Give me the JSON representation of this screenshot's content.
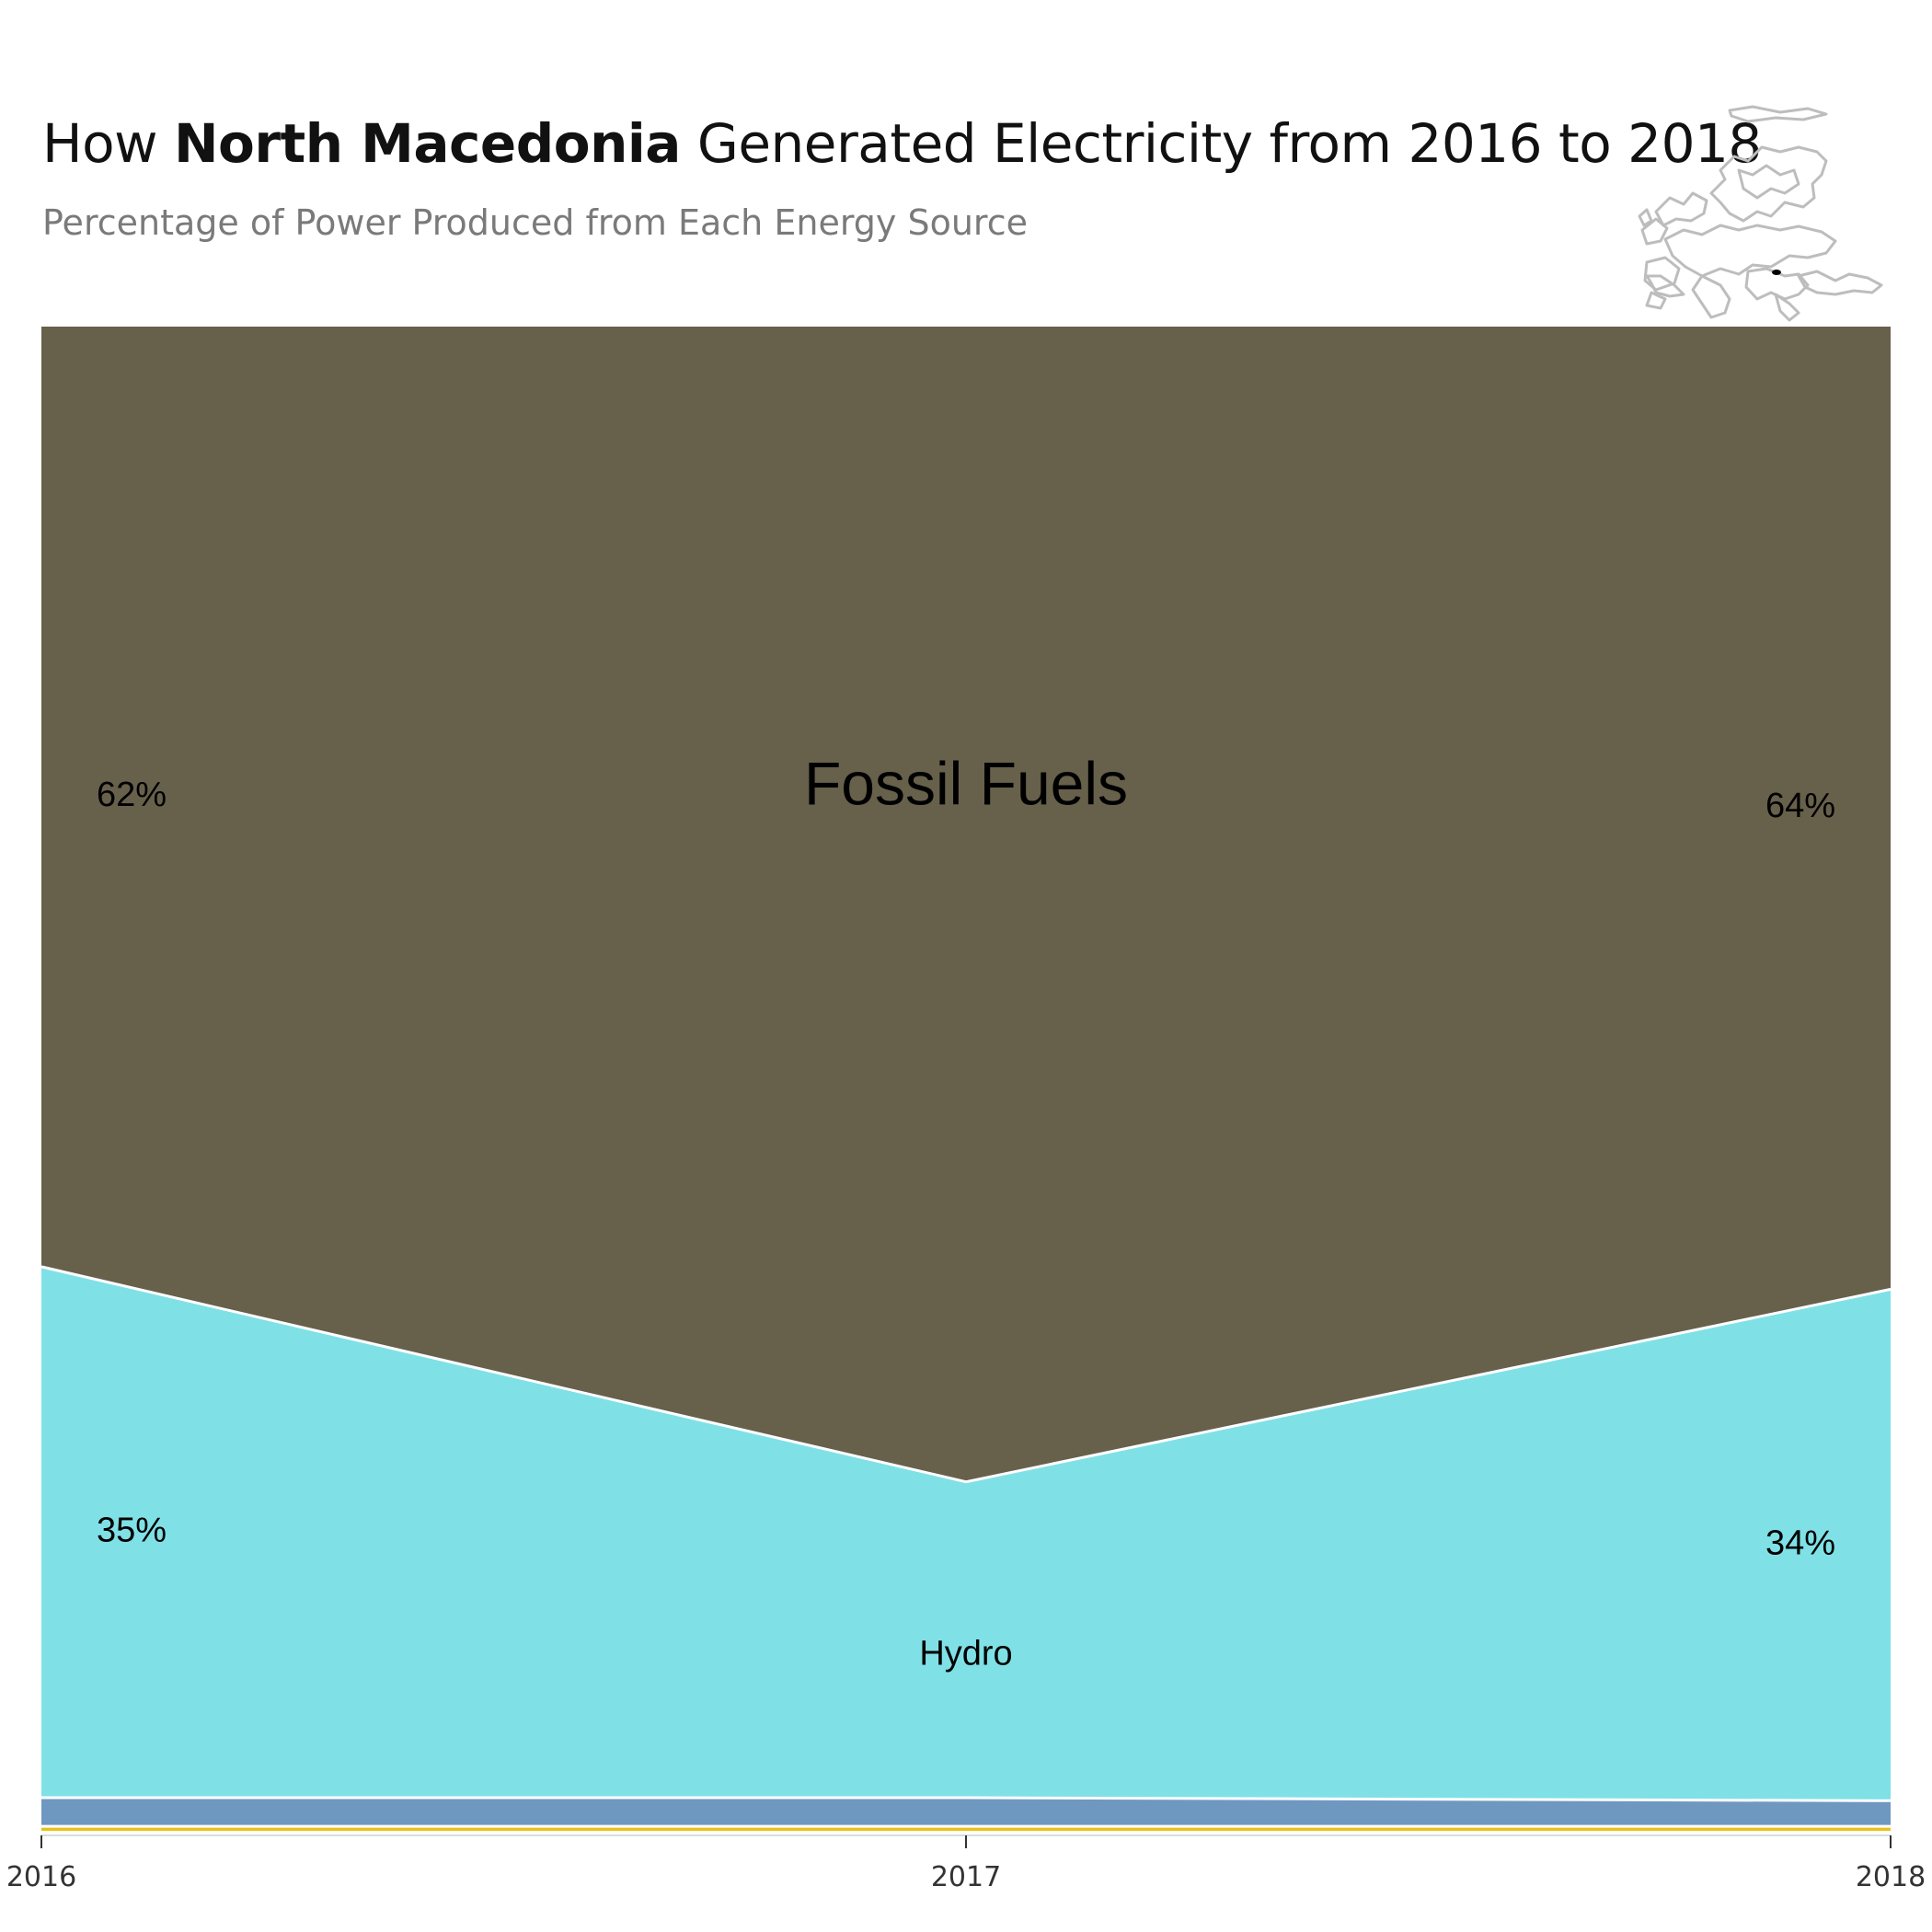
{
  "title": {
    "prefix": "How ",
    "country": "North Macedonia",
    "suffix": " Generated Electricity from 2016 to 2018"
  },
  "subtitle": "Percentage of Power Produced from Each Energy Source",
  "map": {
    "icon": "europe-locator-map-icon",
    "highlight_color": "#000000",
    "outline_color": "#bdbdbd"
  },
  "chart_data": {
    "type": "area",
    "stacked": true,
    "x": [
      2016,
      2017,
      2018
    ],
    "ylim": [
      0,
      100
    ],
    "grid": false,
    "series": [
      {
        "name": "",
        "values": [
          0.3,
          0.3,
          0.3
        ],
        "color": "#e8c21a"
      },
      {
        "name": "",
        "values": [
          1.9,
          1.9,
          1.7
        ],
        "color": "#6f98c0"
      },
      {
        "name": "Hydro",
        "values": [
          35.3,
          21.0,
          34.0
        ],
        "color": "#7fe1e6"
      },
      {
        "name": "Fossil Fuels",
        "values": [
          62.5,
          76.8,
          64.0
        ],
        "color": "#67604b"
      }
    ],
    "area_labels": [
      {
        "series": "Fossil Fuels",
        "text": "Fossil Fuels"
      },
      {
        "series": "Hydro",
        "text": "Hydro"
      }
    ],
    "value_labels": [
      {
        "series": "Fossil Fuels",
        "x": 2016,
        "text": "62%"
      },
      {
        "series": "Fossil Fuels",
        "x": 2018,
        "text": "64%"
      },
      {
        "series": "Hydro",
        "x": 2016,
        "text": "35%"
      },
      {
        "series": "Hydro",
        "x": 2018,
        "text": "34%"
      }
    ],
    "tick_labels": [
      "2016",
      "2017",
      "2018"
    ]
  }
}
